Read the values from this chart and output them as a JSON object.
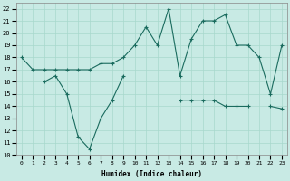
{
  "xlabel": "Humidex (Indice chaleur)",
  "xlim": [
    -0.5,
    23.5
  ],
  "ylim": [
    10,
    22.5
  ],
  "yticks": [
    10,
    11,
    12,
    13,
    14,
    15,
    16,
    17,
    18,
    19,
    20,
    21,
    22
  ],
  "xticks": [
    0,
    1,
    2,
    3,
    4,
    5,
    6,
    7,
    8,
    9,
    10,
    11,
    12,
    13,
    14,
    15,
    16,
    17,
    18,
    19,
    20,
    21,
    22,
    23
  ],
  "bg_color": "#c8eae4",
  "line_color": "#1a6b5e",
  "grid_color": "#a8d8cc",
  "line1_x": [
    0,
    1,
    2,
    3,
    4,
    5,
    6,
    7,
    8,
    9,
    10,
    11,
    12,
    13,
    14,
    15,
    16,
    17,
    18,
    19,
    20,
    21,
    22,
    23
  ],
  "line1_y": [
    18,
    17,
    17,
    17,
    17,
    17,
    17,
    17.5,
    17.5,
    18,
    19,
    20.5,
    19,
    22,
    16.5,
    19.5,
    21,
    21,
    21.5,
    19,
    19,
    18,
    15,
    19
  ],
  "line2_x": [
    2,
    3,
    4,
    5,
    6,
    7,
    8,
    9,
    14,
    15,
    16,
    17,
    18,
    19,
    20,
    22,
    23
  ],
  "line2_y": [
    16,
    16.5,
    15,
    11.5,
    10.5,
    13,
    14.5,
    16.5,
    14.5,
    14.5,
    14.5,
    14.5,
    14,
    14,
    14,
    14,
    13.8
  ]
}
